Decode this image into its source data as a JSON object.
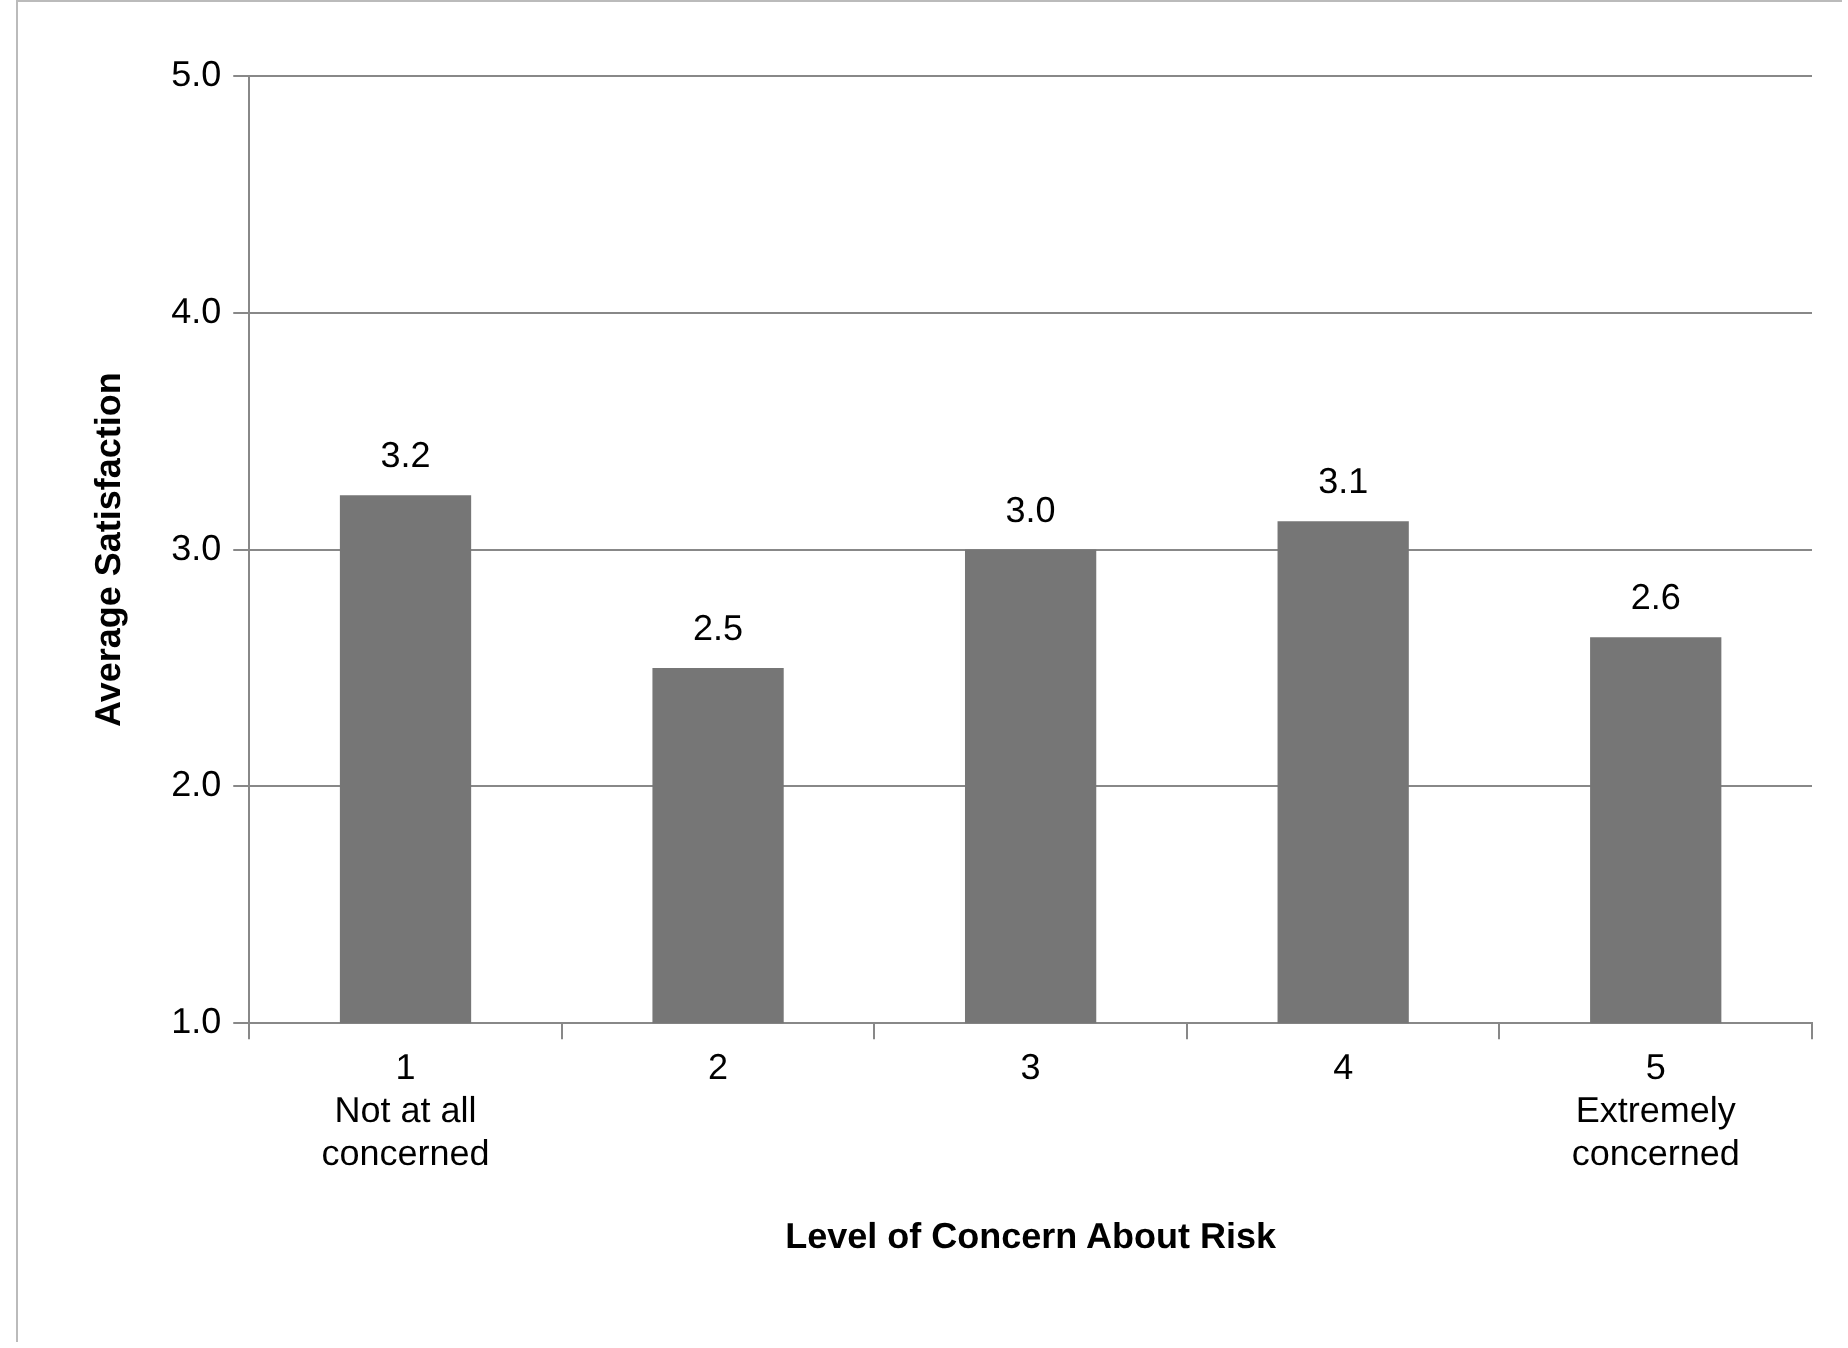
{
  "chart_data": {
    "type": "bar",
    "xlabel": "Level of Concern About Risk",
    "ylabel": "Average Satisfaction",
    "categories": [
      "1\nNot at all\nconcerned",
      "2",
      "3",
      "4",
      "5\nExtremely\nconcerned"
    ],
    "values": [
      3.23,
      2.5,
      3.0,
      3.12,
      2.63
    ],
    "value_labels": [
      "3.2",
      "2.5",
      "3.0",
      "3.1",
      "2.6"
    ],
    "color": "#767676",
    "ylim": [
      1,
      5
    ],
    "yticks": [
      {
        "value": 1,
        "label": "1.0"
      },
      {
        "value": 2,
        "label": "2.0"
      },
      {
        "value": 3,
        "label": "3.0"
      },
      {
        "value": 4,
        "label": "4.0"
      },
      {
        "value": 5,
        "label": "5.0"
      }
    ],
    "grid": "y",
    "legend": false
  }
}
